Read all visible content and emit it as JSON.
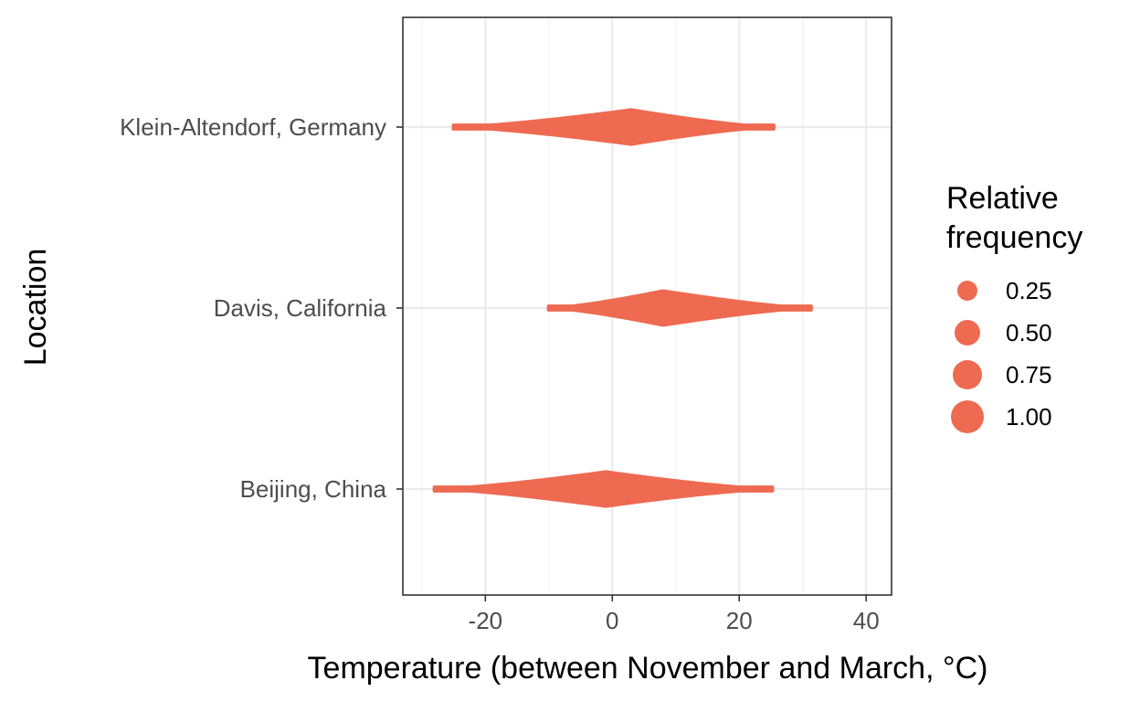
{
  "chart_data": {
    "type": "scatter",
    "subtype": "dot-density (beeswarm-like) by category",
    "title": "",
    "xlabel": "Temperature (between November and March, °C)",
    "ylabel": "Location",
    "xlim": [
      -33,
      44
    ],
    "x_ticks": [
      -20,
      0,
      20,
      40
    ],
    "x_tick_labels": [
      "-20",
      "0",
      "20",
      "40"
    ],
    "categories": [
      "Klein-Altendorf, Germany",
      "Davis, California",
      "Beijing, China"
    ],
    "grid": true,
    "color": "#EE6A50",
    "series": [
      {
        "category": "Klein-Altendorf, Germany",
        "x_min": -25,
        "x_max": 25.5,
        "mode": 3,
        "half_width_at_mode": 0.5
      },
      {
        "category": "Davis, California",
        "x_min": -10,
        "x_max": 31.5,
        "mode": 8,
        "half_width_at_mode": 0.5
      },
      {
        "category": "Beijing, China",
        "x_min": -28,
        "x_max": 25.5,
        "mode": -1,
        "half_width_at_mode": 0.5
      }
    ],
    "legend": {
      "title_lines": [
        "Relative",
        "frequency"
      ],
      "placement": "right",
      "entries": [
        {
          "label": "0.25",
          "value": 0.25
        },
        {
          "label": "0.50",
          "value": 0.5
        },
        {
          "label": "0.75",
          "value": 0.75
        },
        {
          "label": "1.00",
          "value": 1.0
        }
      ]
    }
  }
}
